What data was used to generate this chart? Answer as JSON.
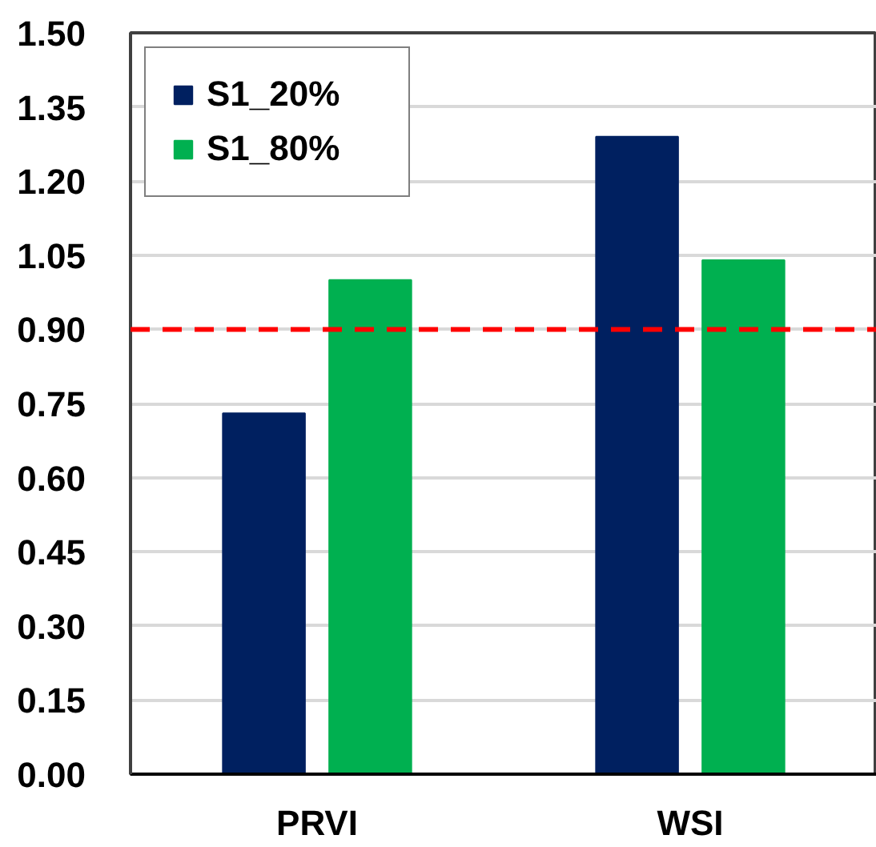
{
  "chart_data": {
    "type": "bar",
    "categories": [
      "PRVI",
      "WSI"
    ],
    "series": [
      {
        "name": "S1_20%",
        "color": "#002060",
        "values": [
          0.73,
          1.29
        ]
      },
      {
        "name": "S1_80%",
        "color": "#00b050",
        "values": [
          1.0,
          1.04
        ]
      }
    ],
    "ylim": [
      0,
      1.5
    ],
    "yticks": [
      {
        "value": 0,
        "label": "0.00"
      },
      0.15,
      {
        "value": 0.3,
        "label": "0.30"
      },
      0.45,
      {
        "value": 0.6,
        "label": "0.60"
      },
      0.75,
      {
        "value": 0.9,
        "label": "0.90"
      },
      1.05,
      {
        "value": 1.2,
        "label": "1.20"
      },
      1.35,
      {
        "value": 1.5,
        "label": "1.50"
      }
    ],
    "ref_lines": [
      {
        "axis": "y",
        "value": 0.9,
        "color": "#ff0000",
        "line_style": "dashed"
      }
    ],
    "grid": "y",
    "legend": "top left"
  }
}
